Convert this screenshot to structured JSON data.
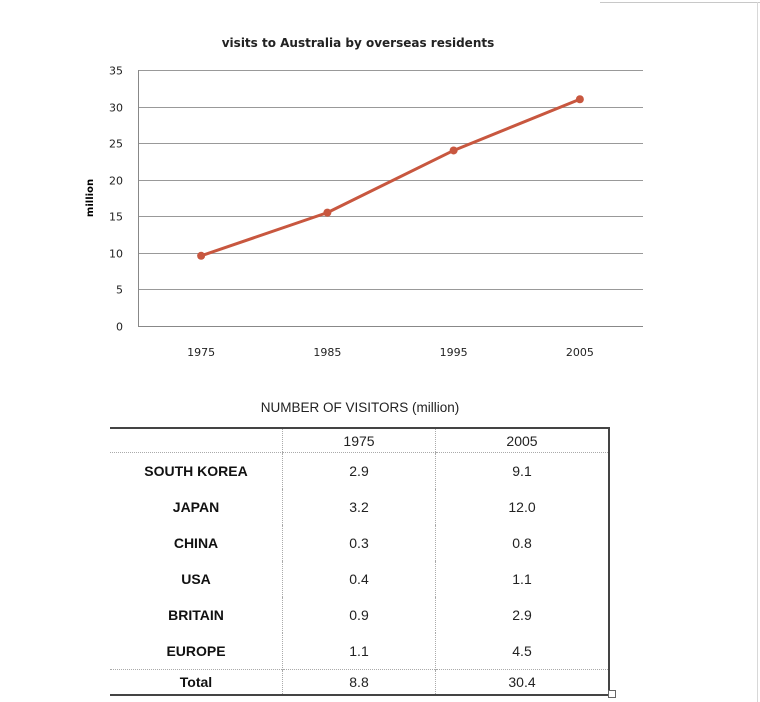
{
  "chart_data": [
    {
      "type": "line",
      "title": "visits to Australia by overseas residents",
      "xlabel": "",
      "ylabel": "million",
      "categories": [
        "1975",
        "1985",
        "1995",
        "2005"
      ],
      "series": [
        {
          "name": "visits",
          "values": [
            9.6,
            15.5,
            24,
            31
          ],
          "color": "#c8573f"
        }
      ],
      "ylim": [
        0,
        35
      ],
      "yticks": [
        0,
        5,
        10,
        15,
        20,
        25,
        30,
        35
      ],
      "grid": true,
      "legend": "none"
    },
    {
      "type": "table",
      "title": "NUMBER OF VISITORS  (million)",
      "columns": [
        "",
        "1975",
        "2005"
      ],
      "rows": [
        [
          "SOUTH KOREA",
          "2.9",
          "9.1"
        ],
        [
          "JAPAN",
          "3.2",
          "12.0"
        ],
        [
          "CHINA",
          "0.3",
          "0.8"
        ],
        [
          "USA",
          "0.4",
          "1.1"
        ],
        [
          "BRITAIN",
          "0.9",
          "2.9"
        ],
        [
          "EUROPE",
          "1.1",
          "4.5"
        ]
      ],
      "total": [
        "Total",
        "8.8",
        "30.4"
      ]
    }
  ]
}
